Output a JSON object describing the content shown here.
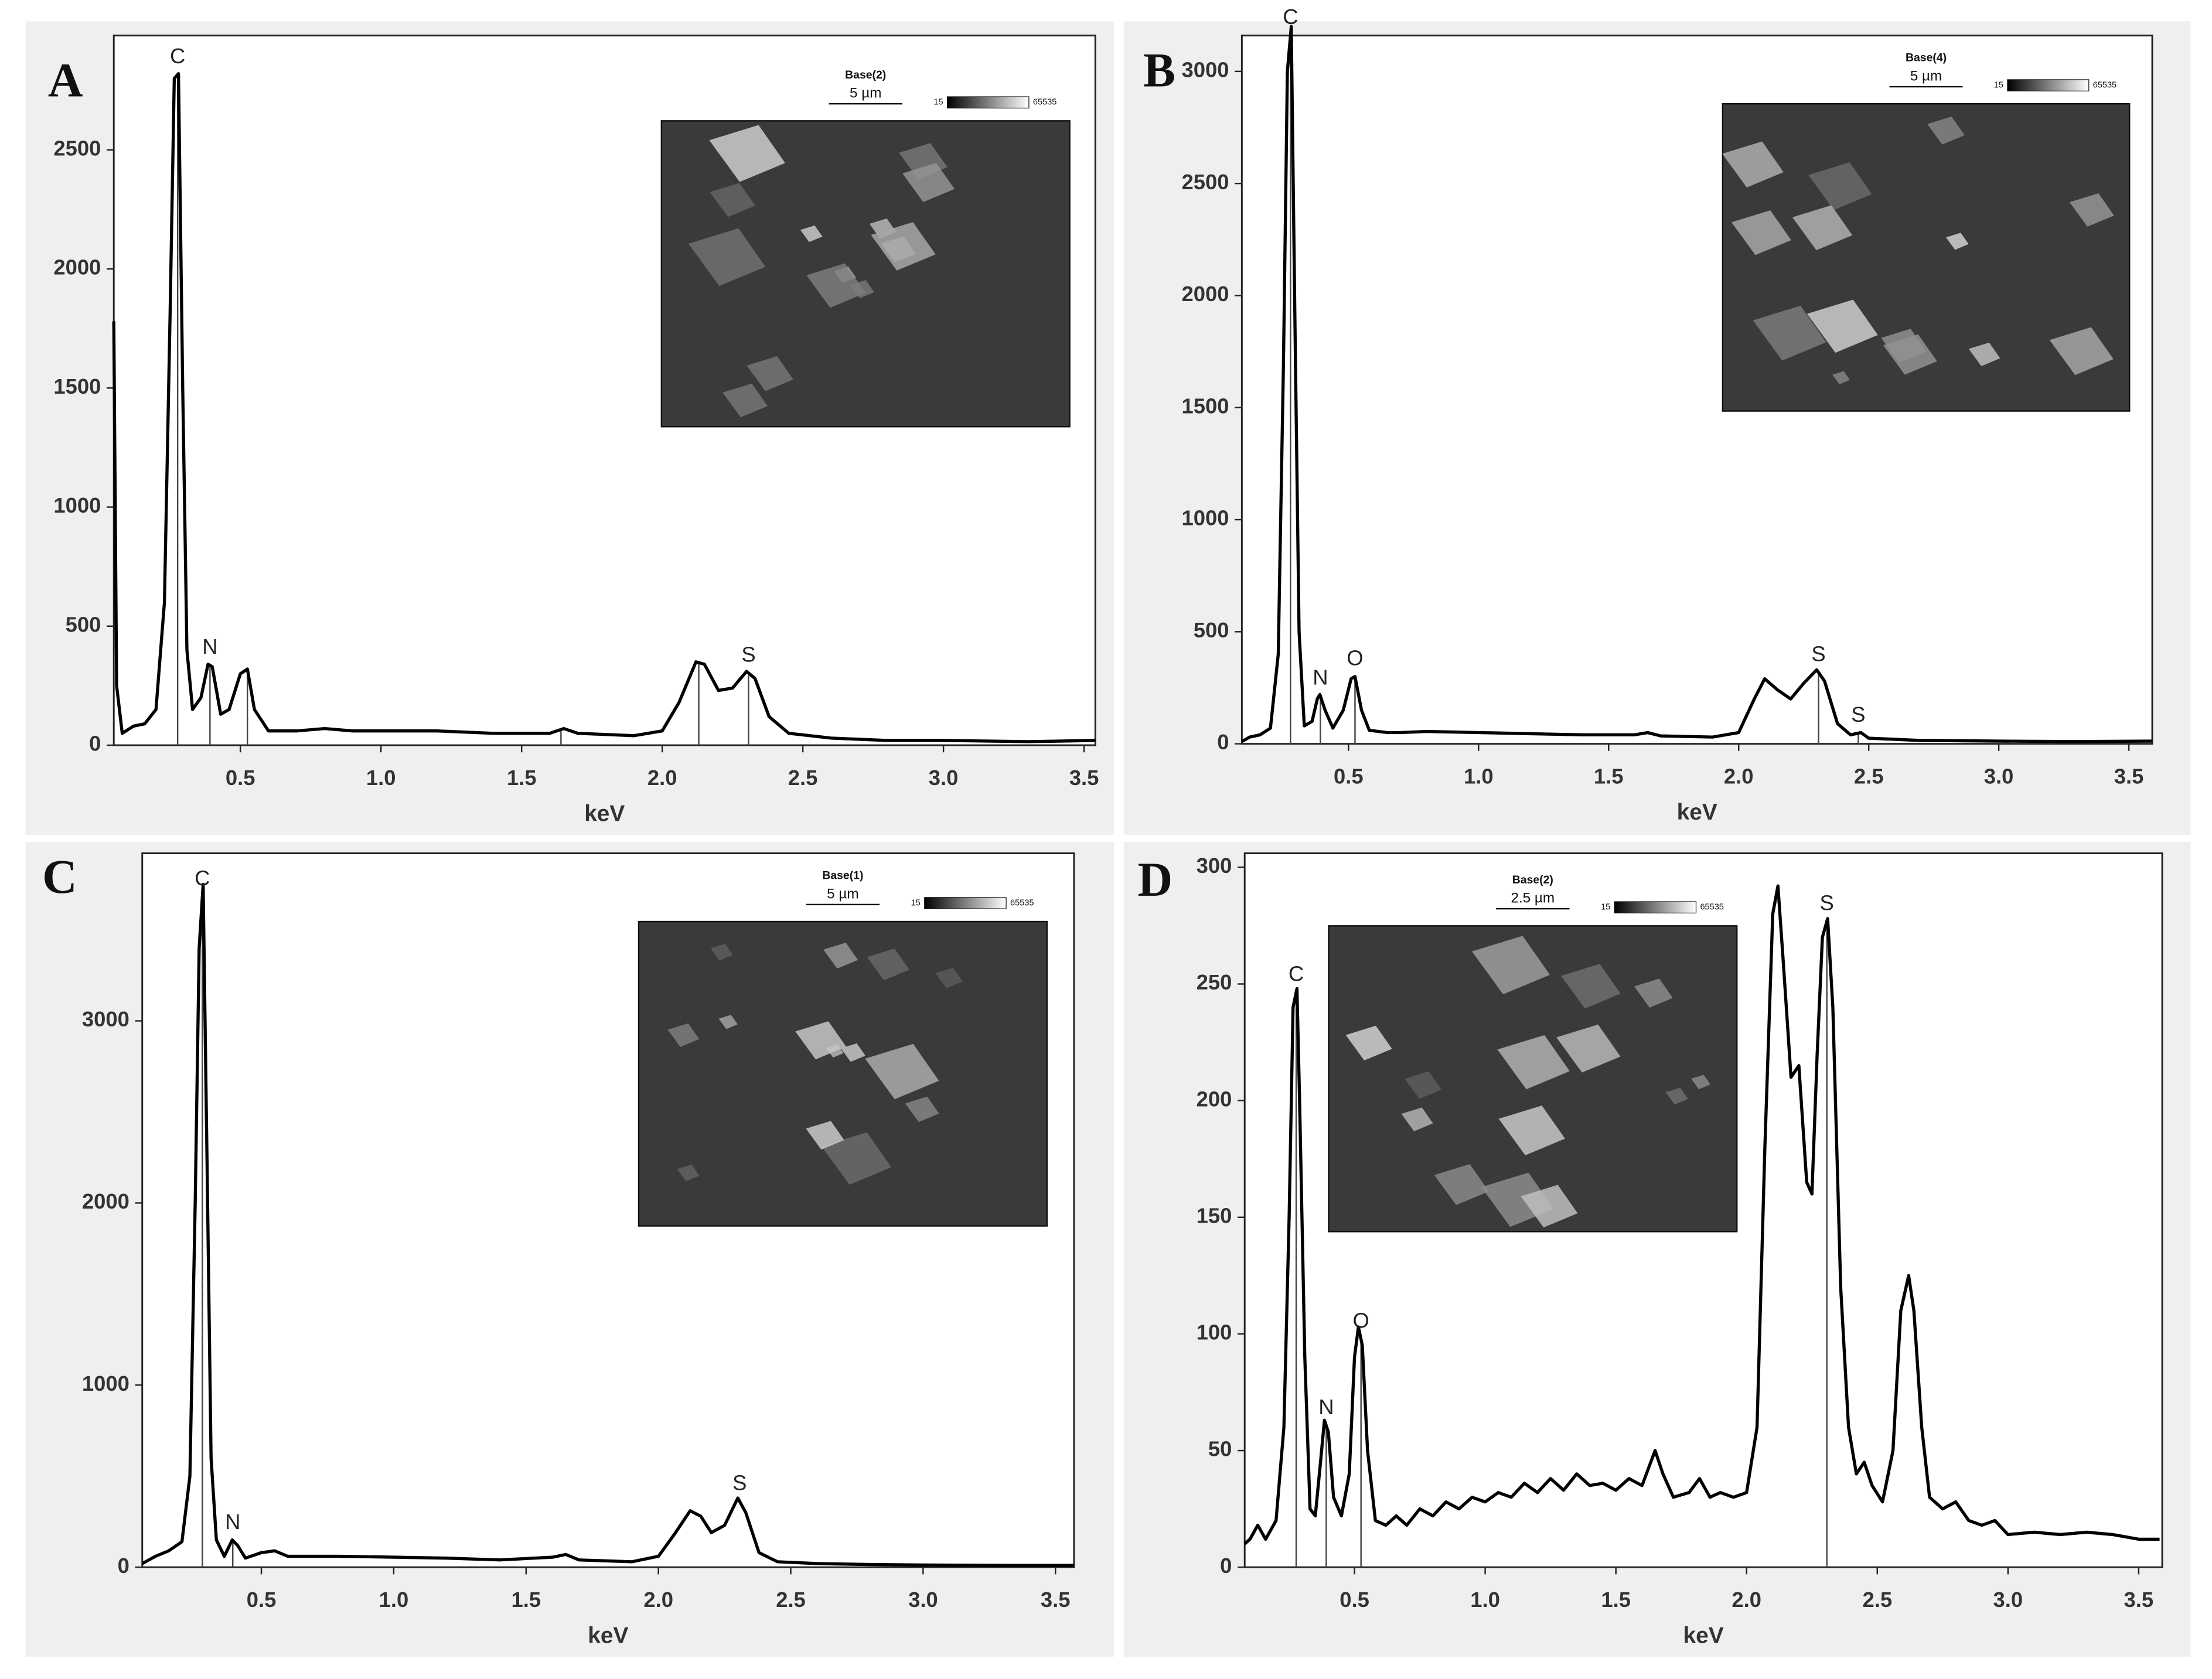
{
  "chart_data": [
    {
      "type": "line",
      "panel_label": "A",
      "xlabel": "keV",
      "color": "#000000",
      "x": [
        0.05,
        0.06,
        0.08,
        0.12,
        0.16,
        0.2,
        0.23,
        0.25,
        0.265,
        0.28,
        0.295,
        0.31,
        0.33,
        0.36,
        0.385,
        0.4,
        0.43,
        0.46,
        0.5,
        0.525,
        0.55,
        0.6,
        0.7,
        0.8,
        0.9,
        1.0,
        1.2,
        1.4,
        1.6,
        1.65,
        1.7,
        1.9,
        2.0,
        2.06,
        2.12,
        2.15,
        2.2,
        2.25,
        2.3,
        2.33,
        2.38,
        2.45,
        2.6,
        2.8,
        3.0,
        3.3,
        3.54
      ],
      "values": [
        1780,
        250,
        50,
        80,
        90,
        150,
        600,
        1800,
        2800,
        2820,
        1500,
        400,
        150,
        200,
        340,
        330,
        130,
        150,
        300,
        320,
        150,
        60,
        60,
        70,
        60,
        60,
        60,
        50,
        50,
        70,
        50,
        40,
        60,
        180,
        350,
        340,
        230,
        240,
        310,
        280,
        120,
        50,
        30,
        20,
        20,
        15,
        20
      ],
      "xlim": [
        0.05,
        3.54
      ],
      "ylim": [
        0,
        2980
      ],
      "xticks": [
        0.5,
        {
          "value": 1,
          "label": "1.0"
        },
        1.5,
        {
          "value": 2,
          "label": "2.0"
        },
        2.5,
        {
          "value": 3,
          "label": "3.0"
        },
        3.5
      ],
      "yticks": [
        0,
        500,
        1000,
        1500,
        2000,
        2500
      ],
      "peak_lines": [
        0.277,
        0.392,
        0.525,
        1.64,
        2.13,
        2.307
      ],
      "peak_labels": [
        {
          "text": "C",
          "x": 0.277
        },
        {
          "text": "N",
          "x": 0.392
        },
        {
          "text": "S",
          "x": 2.307
        }
      ],
      "inset": {
        "title": "Base(2)",
        "scale": "5 µm",
        "gray_min": "15",
        "gray_max": "65535"
      }
    },
    {
      "type": "line",
      "panel_label": "B",
      "xlabel": "keV",
      "color": "#000000",
      "x": [
        0.09,
        0.12,
        0.16,
        0.2,
        0.23,
        0.25,
        0.265,
        0.28,
        0.295,
        0.31,
        0.33,
        0.36,
        0.38,
        0.39,
        0.41,
        0.44,
        0.48,
        0.51,
        0.525,
        0.55,
        0.58,
        0.65,
        0.7,
        0.8,
        1.0,
        1.2,
        1.4,
        1.6,
        1.65,
        1.7,
        1.9,
        2.0,
        2.06,
        2.1,
        2.15,
        2.2,
        2.25,
        2.3,
        2.33,
        2.38,
        2.43,
        2.47,
        2.5,
        2.7,
        3.0,
        3.3,
        3.59
      ],
      "values": [
        10,
        30,
        40,
        70,
        400,
        1700,
        3000,
        3200,
        1800,
        500,
        80,
        100,
        200,
        220,
        150,
        70,
        150,
        290,
        300,
        150,
        60,
        50,
        50,
        55,
        50,
        45,
        40,
        40,
        50,
        35,
        30,
        50,
        200,
        290,
        240,
        200,
        270,
        330,
        280,
        90,
        40,
        50,
        25,
        15,
        12,
        10,
        12
      ],
      "xlim": [
        0.09,
        3.59
      ],
      "ylim": [
        0,
        3160
      ],
      "xticks": [
        0.5,
        {
          "value": 1,
          "label": "1.0"
        },
        1.5,
        {
          "value": 2,
          "label": "2.0"
        },
        2.5,
        {
          "value": 3,
          "label": "3.0"
        },
        3.5
      ],
      "yticks": [
        0,
        500,
        1000,
        1500,
        2000,
        2500,
        3000
      ],
      "peak_lines": [
        0.277,
        0.392,
        0.525,
        2.307,
        2.46
      ],
      "peak_labels": [
        {
          "text": "C",
          "x": 0.277
        },
        {
          "text": "N",
          "x": 0.392
        },
        {
          "text": "O",
          "x": 0.525
        },
        {
          "text": "S",
          "x": 2.307
        },
        {
          "text": "S",
          "x": 2.46
        }
      ],
      "inset": {
        "title": "Base(4)",
        "scale": "5 µm",
        "gray_min": "15",
        "gray_max": "65535"
      }
    },
    {
      "type": "line",
      "panel_label": "C",
      "xlabel": "keV",
      "color": "#000000",
      "x": [
        0.05,
        0.1,
        0.15,
        0.2,
        0.23,
        0.25,
        0.265,
        0.28,
        0.295,
        0.31,
        0.33,
        0.36,
        0.39,
        0.41,
        0.44,
        0.5,
        0.55,
        0.6,
        0.8,
        1.0,
        1.2,
        1.4,
        1.6,
        1.65,
        1.7,
        1.9,
        2.0,
        2.06,
        2.12,
        2.16,
        2.2,
        2.25,
        2.3,
        2.33,
        2.38,
        2.45,
        2.6,
        2.8,
        3.0,
        3.3,
        3.57
      ],
      "values": [
        20,
        60,
        90,
        140,
        500,
        2000,
        3400,
        3750,
        2200,
        600,
        150,
        60,
        150,
        120,
        50,
        80,
        90,
        60,
        60,
        55,
        50,
        40,
        55,
        70,
        40,
        30,
        60,
        180,
        310,
        280,
        190,
        230,
        380,
        300,
        80,
        30,
        20,
        15,
        12,
        10,
        10
      ],
      "xlim": [
        0.05,
        3.57
      ],
      "ylim": [
        0,
        3920
      ],
      "xticks": [
        0.5,
        {
          "value": 1,
          "label": "1.0"
        },
        1.5,
        {
          "value": 2,
          "label": "2.0"
        },
        2.5,
        {
          "value": 3,
          "label": "3.0"
        },
        3.5
      ],
      "yticks": [
        0,
        1000,
        2000,
        3000
      ],
      "peak_lines": [
        0.277,
        0.392
      ],
      "peak_labels": [
        {
          "text": "C",
          "x": 0.277
        },
        {
          "text": "N",
          "x": 0.392
        },
        {
          "text": "S",
          "x": 2.307
        }
      ],
      "inset": {
        "title": "Base(1)",
        "scale": "5 µm",
        "gray_min": "15",
        "gray_max": "65535"
      }
    },
    {
      "type": "line",
      "panel_label": "D",
      "xlabel": "keV",
      "color": "#000000",
      "x": [
        0.08,
        0.1,
        0.13,
        0.16,
        0.2,
        0.23,
        0.25,
        0.265,
        0.28,
        0.29,
        0.31,
        0.33,
        0.35,
        0.37,
        0.385,
        0.4,
        0.42,
        0.45,
        0.48,
        0.5,
        0.515,
        0.53,
        0.55,
        0.58,
        0.62,
        0.66,
        0.7,
        0.75,
        0.8,
        0.85,
        0.9,
        0.95,
        1.0,
        1.05,
        1.1,
        1.15,
        1.2,
        1.25,
        1.3,
        1.35,
        1.4,
        1.45,
        1.5,
        1.55,
        1.6,
        1.65,
        1.68,
        1.72,
        1.78,
        1.82,
        1.86,
        1.9,
        1.95,
        2.0,
        2.04,
        2.07,
        2.1,
        2.12,
        2.14,
        2.17,
        2.2,
        2.23,
        2.25,
        2.27,
        2.29,
        2.31,
        2.33,
        2.36,
        2.39,
        2.42,
        2.45,
        2.48,
        2.52,
        2.56,
        2.59,
        2.62,
        2.64,
        2.67,
        2.7,
        2.75,
        2.8,
        2.85,
        2.9,
        2.95,
        3.0,
        3.1,
        3.2,
        3.3,
        3.4,
        3.5,
        3.58
      ],
      "values": [
        10,
        12,
        18,
        12,
        20,
        60,
        150,
        240,
        248,
        200,
        90,
        25,
        22,
        45,
        63,
        58,
        30,
        22,
        40,
        90,
        103,
        95,
        50,
        20,
        18,
        22,
        18,
        25,
        22,
        28,
        25,
        30,
        28,
        32,
        30,
        36,
        32,
        38,
        33,
        40,
        35,
        36,
        33,
        38,
        35,
        50,
        40,
        30,
        32,
        38,
        30,
        32,
        30,
        32,
        60,
        180,
        280,
        292,
        260,
        210,
        215,
        165,
        160,
        220,
        270,
        278,
        240,
        120,
        60,
        40,
        45,
        35,
        28,
        50,
        110,
        125,
        110,
        60,
        30,
        25,
        28,
        20,
        18,
        20,
        14,
        15,
        14,
        15,
        14,
        12,
        12
      ],
      "xlim": [
        0.08,
        3.59
      ],
      "ylim": [
        0,
        306
      ],
      "xticks": [
        0.5,
        {
          "value": 1,
          "label": "1.0"
        },
        1.5,
        {
          "value": 2,
          "label": "2.0"
        },
        2.5,
        {
          "value": 3,
          "label": "3.0"
        },
        3.5
      ],
      "yticks": [
        0,
        50,
        100,
        150,
        200,
        250,
        300
      ],
      "peak_lines": [
        0.277,
        0.392,
        0.525,
        2.307
      ],
      "peak_labels": [
        {
          "text": "C",
          "x": 0.277
        },
        {
          "text": "N",
          "x": 0.392
        },
        {
          "text": "O",
          "x": 0.525
        },
        {
          "text": "S",
          "x": 2.307
        }
      ],
      "inset": {
        "title": "Base(2)",
        "scale": "2.5 µm",
        "gray_min": "15",
        "gray_max": "65535"
      }
    }
  ]
}
